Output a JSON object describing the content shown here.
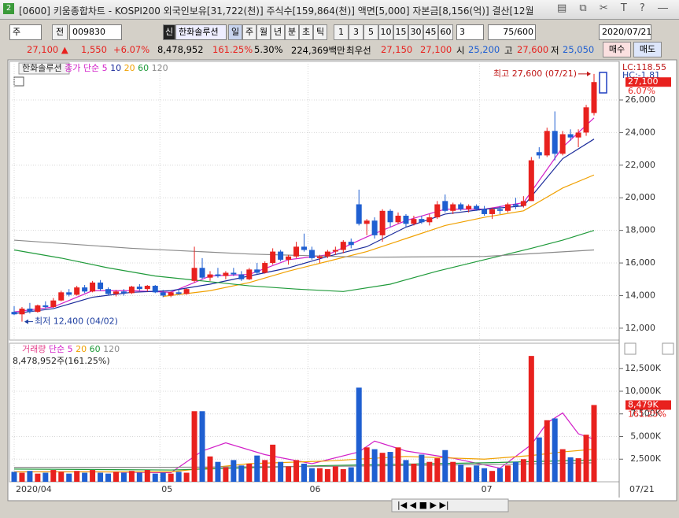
{
  "window": {
    "badge": "2",
    "title": "[0600] 키움종합차트 - KOSPI200 외국인보유[31,722(천)] 주식수[159,864(천)] 액면[5,000] 자본금[8,156(억)] 결산[12월"
  },
  "toolbar": {
    "market": "주",
    "view": "전",
    "code": "009830",
    "name_badge": "신",
    "name": "한화솔루션",
    "periods": [
      "일",
      "주",
      "월",
      "년",
      "분",
      "초",
      "틱"
    ],
    "intervals": [
      "1",
      "3",
      "5",
      "10",
      "15",
      "30",
      "45",
      "60"
    ],
    "n": "3",
    "count": "75/600",
    "date": "2020/07/21"
  },
  "quote": {
    "price": "27,100 ▲",
    "change": "1,550",
    "rate": "+6.07%",
    "volume": "8,478,952",
    "volume_rate": "161.25%",
    "turnover": "5.30%",
    "amount": "224,369백만",
    "best_label": "최우선",
    "ask": "27,150",
    "bid": "27,100",
    "open_label": "시",
    "open": "25,200",
    "high_label": "고",
    "high": "27,600",
    "low_label": "저",
    "low": "25,050",
    "buy": "매수",
    "sell": "매도"
  },
  "chart_data": [
    {
      "type": "candlestick",
      "title": "한화솔루션",
      "legend_prefix": "종가 단순",
      "up_color": "#e8211e",
      "down_color": "#1f5fd1",
      "x_labels": [
        {
          "value": 0,
          "label": "2020/04"
        },
        {
          "value": 18.6,
          "label": "05"
        },
        {
          "value": 37.5,
          "label": "06"
        },
        {
          "value": 59.4,
          "label": "07"
        }
      ],
      "date_label": "07/21",
      "open": [
        13000,
        12850,
        13200,
        13000,
        13400,
        13300,
        13700,
        14200,
        14050,
        14500,
        14250,
        14800,
        14400,
        14100,
        14250,
        14150,
        14550,
        14400,
        14600,
        14200,
        14000,
        14200,
        14100,
        14900,
        15700,
        15100,
        15300,
        15200,
        15400,
        15300,
        15000,
        15600,
        15400,
        16000,
        16700,
        16200,
        16400,
        17000,
        16800,
        16300,
        16400,
        16700,
        16800,
        17300,
        19600,
        18400,
        18600,
        17700,
        19200,
        18500,
        18900,
        18400,
        18700,
        18500,
        18800,
        19800,
        19200,
        19600,
        19300,
        19500,
        19300,
        19000,
        19300,
        19200,
        19600,
        19500,
        19800,
        22800,
        22600,
        24100,
        22700,
        23900,
        23700,
        24000,
        25200
      ],
      "high": [
        13350,
        13300,
        13550,
        13450,
        13650,
        13850,
        14300,
        14400,
        14600,
        14650,
        14900,
        14950,
        14500,
        14350,
        14400,
        14600,
        14700,
        14650,
        14650,
        14350,
        14250,
        14400,
        14450,
        17000,
        16300,
        15500,
        15700,
        15500,
        15700,
        15500,
        15700,
        16000,
        16100,
        16900,
        16800,
        16500,
        17300,
        17800,
        17000,
        16500,
        16800,
        17000,
        17400,
        17500,
        20500,
        18700,
        18800,
        19300,
        19300,
        19100,
        19000,
        18900,
        18900,
        19000,
        19800,
        20200,
        19700,
        19700,
        19600,
        19600,
        19500,
        19400,
        19500,
        19700,
        20000,
        20100,
        22500,
        23100,
        24300,
        25300,
        24100,
        24200,
        24200,
        25700,
        27600
      ],
      "low": [
        12800,
        12400,
        12900,
        12950,
        13200,
        13250,
        13650,
        13950,
        14000,
        14150,
        14200,
        14300,
        14000,
        13950,
        14000,
        14100,
        14300,
        14250,
        14150,
        13900,
        13900,
        14050,
        14050,
        14800,
        15000,
        14900,
        15100,
        15000,
        15200,
        14900,
        14950,
        15300,
        15350,
        15900,
        16100,
        15900,
        16300,
        16700,
        16200,
        16000,
        16300,
        16500,
        16600,
        16900,
        18300,
        17700,
        17500,
        17300,
        18200,
        18400,
        18200,
        18300,
        18400,
        18300,
        18700,
        19100,
        19000,
        19200,
        19100,
        19200,
        18900,
        18700,
        19000,
        19100,
        19300,
        19400,
        19800,
        22400,
        22500,
        22300,
        22600,
        23500,
        23100,
        23800,
        25050
      ],
      "close": [
        12850,
        13200,
        13000,
        13400,
        13300,
        13700,
        14200,
        14050,
        14500,
        14250,
        14800,
        14400,
        14100,
        14250,
        14150,
        14550,
        14400,
        14600,
        14200,
        14000,
        14200,
        14100,
        14400,
        15700,
        15100,
        15300,
        15200,
        15400,
        15300,
        15000,
        15600,
        15400,
        16000,
        16700,
        16200,
        16400,
        17000,
        16800,
        16300,
        16400,
        16700,
        16800,
        17300,
        17100,
        18400,
        18600,
        17700,
        19200,
        18500,
        18900,
        18400,
        18700,
        18500,
        18800,
        19600,
        19200,
        19600,
        19300,
        19500,
        19300,
        19000,
        19300,
        19200,
        19600,
        19500,
        19800,
        22300,
        22600,
        24100,
        22700,
        23900,
        23700,
        24000,
        25550,
        27100
      ],
      "series": [
        {
          "name": "5",
          "color": "#d21fc8",
          "x": [
            0,
            5,
            10,
            15,
            20,
            25,
            30,
            35,
            40,
            45,
            50,
            55,
            60,
            65,
            70,
            74
          ],
          "values": [
            13000,
            13300,
            14300,
            14300,
            14200,
            15200,
            15300,
            16200,
            16500,
            17600,
            18600,
            19300,
            19300,
            19700,
            23100,
            24900
          ]
        },
        {
          "name": "10",
          "color": "#1a2a9a",
          "x": [
            0,
            5,
            10,
            15,
            20,
            25,
            30,
            35,
            40,
            45,
            50,
            55,
            60,
            65,
            70,
            74
          ],
          "values": [
            12900,
            13200,
            13900,
            14200,
            14300,
            14700,
            15200,
            15700,
            16400,
            17000,
            18200,
            19000,
            19300,
            19500,
            22400,
            23600
          ]
        },
        {
          "name": "20",
          "color": "#f0a000",
          "x": [
            19,
            25,
            30,
            35,
            40,
            45,
            50,
            55,
            60,
            65,
            70,
            74
          ],
          "values": [
            13950,
            14300,
            14800,
            15500,
            16100,
            16700,
            17500,
            18300,
            18800,
            19200,
            20600,
            21400
          ]
        },
        {
          "name": "60",
          "color": "#1f9a3a",
          "x": [
            0,
            6,
            12,
            18,
            24,
            30,
            36,
            42,
            48,
            54,
            60,
            66,
            70,
            74
          ],
          "values": [
            16800,
            16300,
            15700,
            15200,
            14900,
            14600,
            14400,
            14250,
            14700,
            15500,
            16200,
            16900,
            17400,
            18000
          ]
        },
        {
          "name": "120",
          "color": "#8a8a8a",
          "x": [
            0,
            15,
            30,
            45,
            60,
            74
          ],
          "values": [
            17400,
            16900,
            16550,
            16350,
            16400,
            16800
          ]
        }
      ],
      "ylim": [
        11270,
        28270
      ],
      "yticks": [
        {
          "value": 12000,
          "label": "12,000"
        },
        {
          "value": 14000,
          "label": "14,000"
        },
        {
          "value": 16000,
          "label": "16,000"
        },
        {
          "value": 18000,
          "label": "18,000"
        },
        {
          "value": 20000,
          "label": "20,000"
        },
        {
          "value": 22000,
          "label": "22,000"
        },
        {
          "value": 24000,
          "label": "24,000"
        },
        {
          "value": 26000,
          "label": "26,000"
        }
      ],
      "grid": true,
      "high_note": "최고 27,600 (07/21)",
      "low_note": "최저 12,400 (04/02)",
      "lc_label": "LC:118.55",
      "hc_label": "HC:-1.81",
      "last_label": "27,100",
      "last_rate": "6.07%"
    },
    {
      "type": "bar",
      "title": "거래량",
      "legend_prefix": "단순",
      "subtitle": "8,478,952주(161.25%)",
      "values": [
        1100,
        1000,
        1200,
        900,
        1000,
        1300,
        1100,
        900,
        1200,
        1000,
        1300,
        1000,
        900,
        1100,
        1000,
        1200,
        1000,
        1300,
        900,
        1000,
        900,
        1100,
        1000,
        7800,
        7800,
        2800,
        2200,
        1600,
        2400,
        1800,
        2000,
        2900,
        2400,
        4100,
        2200,
        1700,
        2400,
        2000,
        1500,
        1500,
        1400,
        1700,
        1400,
        1600,
        10400,
        3800,
        3600,
        3200,
        3300,
        3800,
        2400,
        2000,
        3000,
        2200,
        2600,
        3500,
        2200,
        1900,
        1600,
        1800,
        1500,
        1200,
        1500,
        1800,
        2200,
        2500,
        13900,
        4900,
        6800,
        7000,
        3600,
        2700,
        2600,
        5200,
        8478.952
      ],
      "series": [
        {
          "name": "5",
          "color": "#d21fc8",
          "x": [
            0,
            10,
            20,
            24,
            27,
            32,
            38,
            44,
            46,
            50,
            56,
            62,
            66,
            68,
            70,
            72,
            74
          ],
          "values": [
            1100,
            1100,
            1000,
            3400,
            4300,
            3000,
            2000,
            3300,
            4500,
            3400,
            2600,
            1500,
            4100,
            6500,
            7600,
            5300,
            4700
          ]
        },
        {
          "name": "20",
          "color": "#f0a000",
          "x": [
            0,
            20,
            30,
            40,
            50,
            60,
            66,
            70,
            74
          ],
          "values": [
            1100,
            1100,
            2000,
            2300,
            2800,
            2500,
            2900,
            3300,
            3600
          ]
        },
        {
          "name": "60",
          "color": "#1f9a3a",
          "x": [
            0,
            20,
            40,
            60,
            74
          ],
          "values": [
            1400,
            1300,
            1800,
            2100,
            2400
          ]
        },
        {
          "name": "120",
          "color": "#8a8a8a",
          "x": [
            0,
            20,
            40,
            60,
            74
          ],
          "values": [
            1600,
            1600,
            1700,
            1900,
            2100
          ]
        }
      ],
      "ylim": [
        0,
        15130
      ],
      "yticks": [
        {
          "value": 2500,
          "label": "2,500K"
        },
        {
          "value": 5000,
          "label": "5,000K"
        },
        {
          "value": 7500,
          "label": "7,500K"
        },
        {
          "value": 10000,
          "label": "10,000K"
        },
        {
          "value": 12500,
          "label": "12,500K"
        }
      ],
      "grid": true,
      "last_label": "8,479K",
      "last_rate": "161.25%"
    }
  ]
}
